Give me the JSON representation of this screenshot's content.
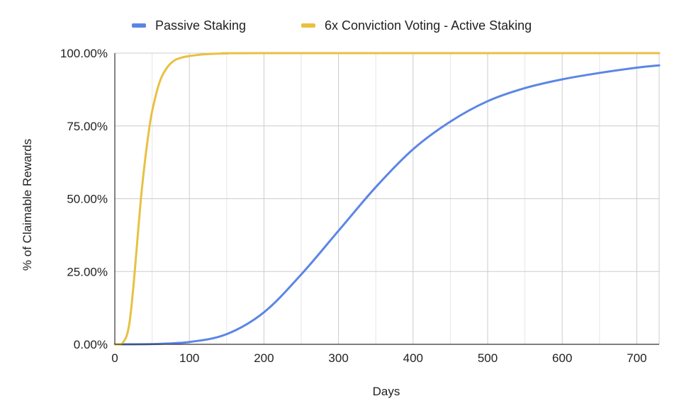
{
  "chart_data": {
    "type": "line",
    "title": "",
    "xlabel": "Days",
    "ylabel": "% of Claimable Rewards",
    "xlim": [
      0,
      730
    ],
    "ylim": [
      0,
      1
    ],
    "x_ticks": [
      0,
      100,
      200,
      300,
      400,
      500,
      600,
      700
    ],
    "x_tick_labels": [
      "0",
      "100",
      "200",
      "300",
      "400",
      "500",
      "600",
      "700"
    ],
    "y_ticks": [
      0,
      0.25,
      0.5,
      0.75,
      1.0
    ],
    "y_tick_labels": [
      "0.00%",
      "25.00%",
      "50.00%",
      "75.00%",
      "100.00%"
    ],
    "grid": true,
    "legend_position": "top",
    "series": [
      {
        "name": "Passive Staking",
        "color": "#5b86e5",
        "x": [
          0,
          50,
          100,
          150,
          200,
          250,
          300,
          350,
          400,
          450,
          500,
          550,
          600,
          650,
          700,
          730
        ],
        "y": [
          0.0,
          0.001,
          0.008,
          0.035,
          0.11,
          0.24,
          0.39,
          0.54,
          0.67,
          0.765,
          0.835,
          0.88,
          0.91,
          0.932,
          0.95,
          0.958
        ]
      },
      {
        "name": "6x Conviction Voting - Active Staking",
        "color": "#e8c142",
        "x": [
          0,
          8,
          12,
          16,
          20,
          25,
          30,
          35,
          40,
          45,
          50,
          60,
          70,
          80,
          90,
          100,
          120,
          150,
          200,
          730
        ],
        "y": [
          0.0,
          0.0,
          0.01,
          0.03,
          0.08,
          0.2,
          0.35,
          0.5,
          0.62,
          0.72,
          0.8,
          0.9,
          0.95,
          0.975,
          0.985,
          0.99,
          0.996,
          0.999,
          1.0,
          1.0
        ]
      }
    ]
  }
}
